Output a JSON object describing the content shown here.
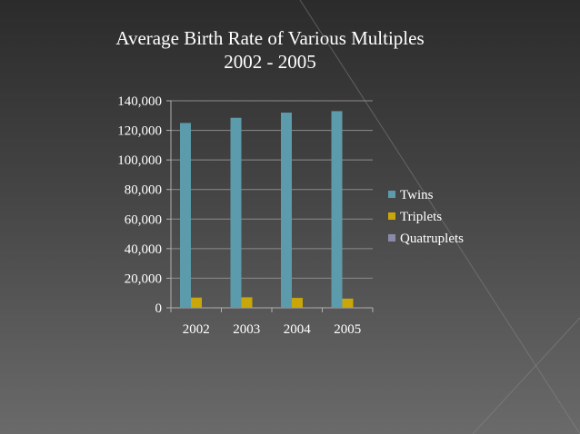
{
  "chart_data": {
    "type": "bar",
    "title": "Average Birth Rate of Various Multiples",
    "subtitle": "2002 - 2005",
    "xlabel": "",
    "ylabel": "",
    "categories": [
      "2002",
      "2003",
      "2004",
      "2005"
    ],
    "series": [
      {
        "name": "Twins",
        "values": [
          125000,
          128500,
          132000,
          133000
        ],
        "color": "#5b9bab"
      },
      {
        "name": "Triplets",
        "values": [
          6900,
          7100,
          6700,
          6200
        ],
        "color": "#c9a70a"
      },
      {
        "name": "Quatruplets",
        "values": [
          450,
          460,
          450,
          420
        ],
        "color": "#8a8aa8"
      }
    ],
    "ylim": [
      0,
      140000
    ],
    "yticks": [
      0,
      20000,
      40000,
      60000,
      80000,
      100000,
      120000,
      140000
    ],
    "ytick_labels": [
      "0",
      "20,000",
      "40,000",
      "60,000",
      "80,000",
      "100,000",
      "120,000",
      "140,000"
    ],
    "grid": true,
    "legend_position": "right"
  }
}
